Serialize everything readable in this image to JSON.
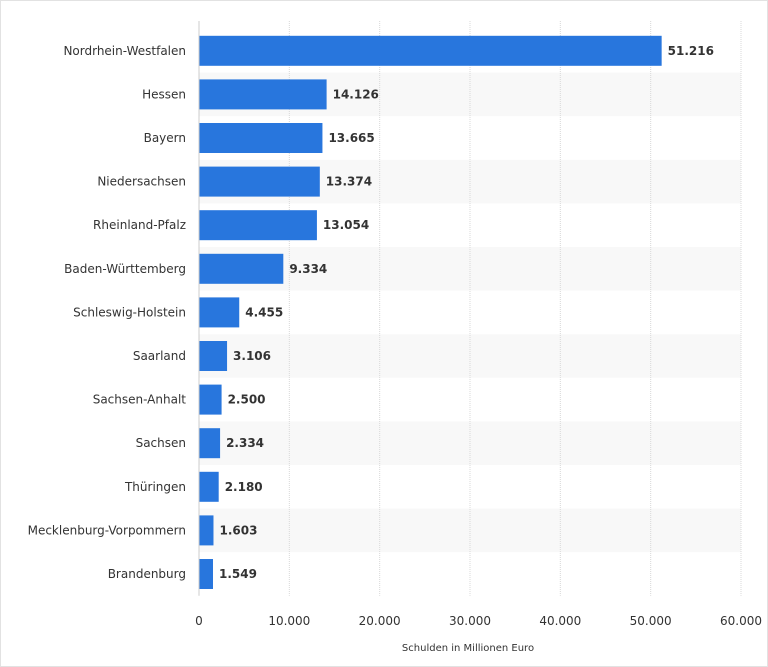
{
  "chart_data": {
    "type": "bar",
    "orientation": "horizontal",
    "categories": [
      "Nordrhein-Westfalen",
      "Hessen",
      "Bayern",
      "Niedersachsen",
      "Rheinland-Pfalz",
      "Baden-Württemberg",
      "Schleswig-Holstein",
      "Saarland",
      "Sachsen-Anhalt",
      "Sachsen",
      "Thüringen",
      "Mecklenburg-Vorpommern",
      "Brandenburg"
    ],
    "values": [
      51216,
      14126,
      13665,
      13374,
      13054,
      9334,
      4455,
      3106,
      2500,
      2334,
      2180,
      1603,
      1549
    ],
    "value_labels": [
      "51.216",
      "14.126",
      "13.665",
      "13.374",
      "13.054",
      "9.334",
      "4.455",
      "3.106",
      "2.500",
      "2.334",
      "2.180",
      "1.603",
      "1.549"
    ],
    "xlim": [
      0,
      60000
    ],
    "xticks": [
      0,
      10000,
      20000,
      30000,
      40000,
      50000,
      60000
    ],
    "xtick_labels": [
      "0",
      "10.000",
      "20.000",
      "30.000",
      "40.000",
      "50.000",
      "60.000"
    ],
    "xlabel": "Schulden in Millionen Euro",
    "ylabel": "",
    "title": "",
    "grid": true,
    "bar_color": "#2876dd",
    "stripe_color": "#f8f8f8"
  }
}
